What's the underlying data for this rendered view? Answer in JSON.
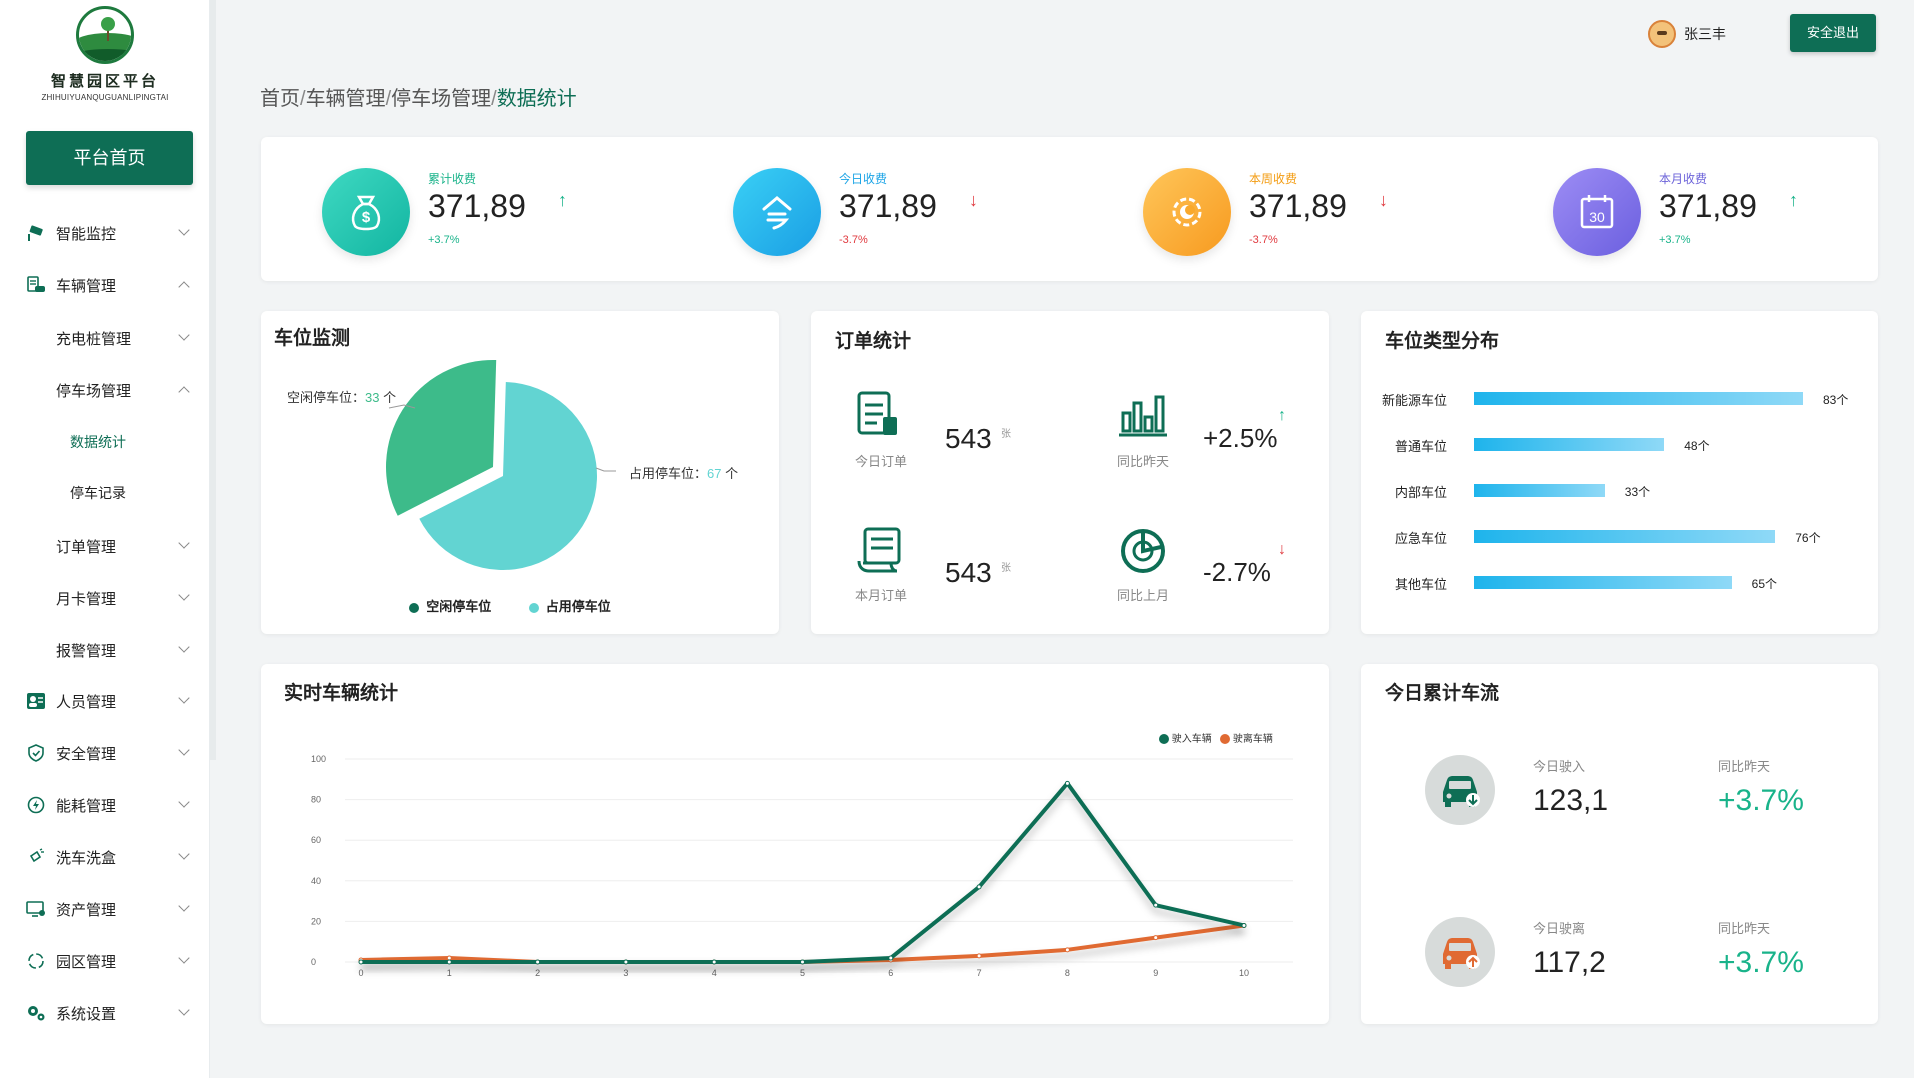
{
  "app": {
    "logo_title": "智慧园区平台",
    "logo_subtitle": "ZHIHUIYUANQUGUANLIPINGTAI",
    "home_button": "平台首页"
  },
  "sidebar": {
    "items": [
      {
        "label": "智能监控",
        "icon": "camera-icon"
      },
      {
        "label": "车辆管理",
        "icon": "car-record-icon"
      },
      {
        "label": "充电桩管理"
      },
      {
        "label": "停车场管理"
      },
      {
        "label": "数据统计"
      },
      {
        "label": "停车记录"
      },
      {
        "label": "订单管理"
      },
      {
        "label": "月卡管理"
      },
      {
        "label": "报警管理"
      },
      {
        "label": "人员管理",
        "icon": "people-icon"
      },
      {
        "label": "安全管理",
        "icon": "shield-icon"
      },
      {
        "label": "能耗管理",
        "icon": "energy-icon"
      },
      {
        "label": "洗车洗盒",
        "icon": "spray-icon"
      },
      {
        "label": "资产管理",
        "icon": "monitor-icon"
      },
      {
        "label": "园区管理",
        "icon": "loop-icon"
      },
      {
        "label": "系统设置",
        "icon": "gears-icon"
      }
    ]
  },
  "header": {
    "username": "张三丰",
    "logout": "安全退出"
  },
  "breadcrumb": {
    "items": [
      "首页",
      "车辆管理",
      "停车场管理",
      "数据统计"
    ],
    "sep": "/"
  },
  "stats": [
    {
      "label": "累计收费",
      "value": "371,89",
      "pct": "+3.7%",
      "trend": "up",
      "label_color": "#19b38a",
      "icon": "money-bag-icon"
    },
    {
      "label": "今日收费",
      "value": "371,89",
      "pct": "-3.7%",
      "trend": "down",
      "label_color": "#1ba4e6",
      "icon": "today-icon"
    },
    {
      "label": "本周收费",
      "value": "371,89",
      "pct": "-3.7%",
      "trend": "down",
      "label_color": "#f39c12",
      "icon": "sun-icon"
    },
    {
      "label": "本月收费",
      "value": "371,89",
      "pct": "+3.7%",
      "trend": "up",
      "label_color": "#6c63d9",
      "icon": "calendar-icon",
      "calendar_day": "30"
    }
  ],
  "parking_monitor": {
    "title": "车位监测",
    "free_label": "空闲停车位：",
    "free_value": "33",
    "occupied_label": "占用停车位：",
    "occupied_value": "67",
    "unit": "个",
    "legend_free": "空闲停车位",
    "legend_occupied": "占用停车位",
    "colors": {
      "free": "#3dbb8a",
      "occupied": "#62d4d2"
    }
  },
  "orders": {
    "title": "订单统计",
    "today_caption": "今日订单",
    "today_value": "543",
    "month_caption": "本月订单",
    "month_value": "543",
    "unit": "张",
    "yoy_day_caption": "同比昨天",
    "yoy_day_value": "+2.5%",
    "yoy_month_caption": "同比上月",
    "yoy_month_value": "-2.7%"
  },
  "spot_types": {
    "title": "车位类型分布",
    "rows": [
      {
        "label": "新能源车位",
        "value": 83,
        "text": "83个"
      },
      {
        "label": "普通车位",
        "value": 48,
        "text": "48个"
      },
      {
        "label": "内部车位",
        "value": 33,
        "text": "33个"
      },
      {
        "label": "应急车位",
        "value": 76,
        "text": "76个"
      },
      {
        "label": "其他车位",
        "value": 65,
        "text": "65个"
      }
    ]
  },
  "realtime": {
    "title": "实时车辆统计"
  },
  "chart_data": {
    "type": "line",
    "x": [
      0,
      1,
      2,
      3,
      4,
      5,
      6,
      7,
      8,
      9,
      10
    ],
    "ylim": [
      0,
      100
    ],
    "yticks": [
      0,
      20,
      40,
      60,
      80,
      100
    ],
    "legend_position": "top-right",
    "series": [
      {
        "name": "驶入车辆",
        "color": "#0e6e55",
        "values": [
          0,
          0,
          0,
          0,
          0,
          0,
          2,
          37,
          88,
          28,
          18
        ]
      },
      {
        "name": "驶离车辆",
        "color": "#e06a33",
        "values": [
          1,
          2,
          0,
          0,
          0,
          0,
          1,
          3,
          6,
          12,
          18
        ]
      }
    ]
  },
  "flow": {
    "title": "今日累计车流",
    "in_caption": "今日驶入",
    "in_value": "123,1",
    "out_caption": "今日驶离",
    "out_value": "117,2",
    "yoy_caption": "同比昨天",
    "in_pct": "+3.7%",
    "out_pct": "+3.7%"
  }
}
